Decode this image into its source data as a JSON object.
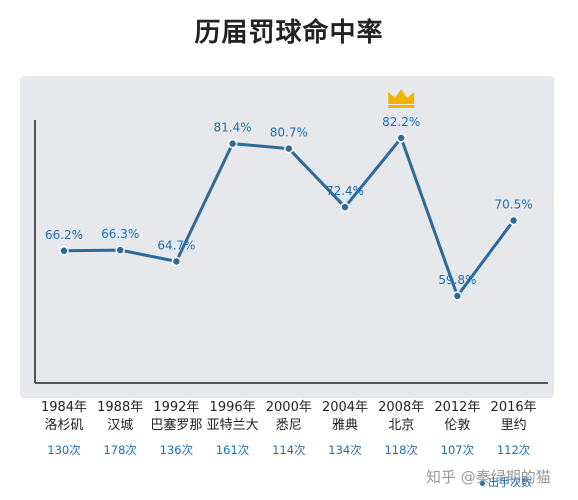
{
  "title": "历届罚球命中率",
  "watermark": "知乎 @秦绿期的猫",
  "legend_label": "出手次数",
  "colors": {
    "line": "#2b6a9b",
    "panel": "#e6e8eb",
    "label": "#1e6fb0",
    "axis": "#555555",
    "crown": "#f3b400"
  },
  "crown_icon": "crown-icon",
  "chart_data": {
    "type": "line",
    "title": "历届罚球命中率",
    "categories": [
      "1984年",
      "1988年",
      "1992年",
      "1996年",
      "2000年",
      "2004年",
      "2008年",
      "2012年",
      "2016年"
    ],
    "cities": [
      "洛杉矶",
      "汉城",
      "巴塞罗那",
      "亚特兰大",
      "悉尼",
      "雅典",
      "北京",
      "伦敦",
      "里约"
    ],
    "attempts": [
      "130次",
      "178次",
      "136次",
      "161次",
      "114次",
      "134次",
      "118次",
      "107次",
      "112次"
    ],
    "series": [
      {
        "values": [
          66.2,
          66.3,
          64.7,
          81.4,
          80.7,
          72.4,
          82.2,
          59.8,
          70.5
        ]
      }
    ],
    "value_labels": [
      "66.2%",
      "66.3%",
      "64.7%",
      "81.4%",
      "80.7%",
      "72.4%",
      "82.2%",
      "59.8%",
      "70.5%"
    ],
    "highlight_index": 6,
    "grid": false
  }
}
